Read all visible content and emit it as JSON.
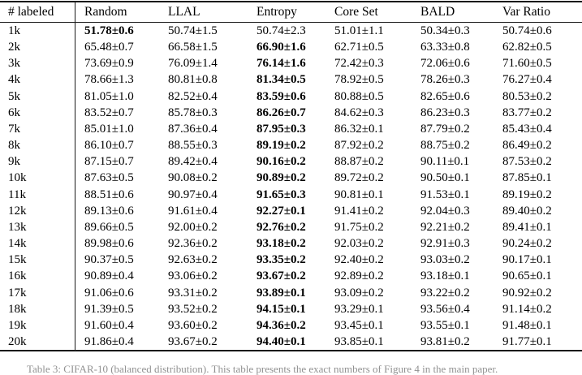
{
  "colors": {
    "rule": "#1a1a1a",
    "text": "#000000"
  },
  "table": {
    "col_headers": [
      "# labeled",
      "Random",
      "LLAL",
      "Entropy",
      "Core Set",
      "BALD",
      "Var Ratio"
    ],
    "rows": [
      {
        "label": "1k",
        "values": [
          "51.78±0.6",
          "50.74±1.5",
          "50.74±2.3",
          "51.01±1.1",
          "50.34±0.3",
          "50.74±0.6"
        ],
        "bold_col": 0
      },
      {
        "label": "2k",
        "values": [
          "65.48±0.7",
          "66.58±1.5",
          "66.90±1.6",
          "62.71±0.5",
          "63.33±0.8",
          "62.82±0.5"
        ],
        "bold_col": 2
      },
      {
        "label": "3k",
        "values": [
          "73.69±0.9",
          "76.09±1.4",
          "76.14±1.6",
          "72.42±0.3",
          "72.06±0.6",
          "71.60±0.5"
        ],
        "bold_col": 2
      },
      {
        "label": "4k",
        "values": [
          "78.66±1.3",
          "80.81±0.8",
          "81.34±0.5",
          "78.92±0.5",
          "78.26±0.3",
          "76.27±0.4"
        ],
        "bold_col": 2
      },
      {
        "label": "5k",
        "values": [
          "81.05±1.0",
          "82.52±0.4",
          "83.59±0.6",
          "80.88±0.5",
          "82.65±0.6",
          "80.53±0.2"
        ],
        "bold_col": 2
      },
      {
        "label": "6k",
        "values": [
          "83.52±0.7",
          "85.78±0.3",
          "86.26±0.7",
          "84.62±0.3",
          "86.23±0.3",
          "83.77±0.2"
        ],
        "bold_col": 2
      },
      {
        "label": "7k",
        "values": [
          "85.01±1.0",
          "87.36±0.4",
          "87.95±0.3",
          "86.32±0.1",
          "87.79±0.2",
          "85.43±0.4"
        ],
        "bold_col": 2
      },
      {
        "label": "8k",
        "values": [
          "86.10±0.7",
          "88.55±0.3",
          "89.19±0.2",
          "87.92±0.2",
          "88.75±0.2",
          "86.49±0.2"
        ],
        "bold_col": 2
      },
      {
        "label": "9k",
        "values": [
          "87.15±0.7",
          "89.42±0.4",
          "90.16±0.2",
          "88.87±0.2",
          "90.11±0.1",
          "87.53±0.2"
        ],
        "bold_col": 2
      },
      {
        "label": "10k",
        "values": [
          "87.63±0.5",
          "90.08±0.2",
          "90.89±0.2",
          "89.72±0.2",
          "90.50±0.1",
          "87.85±0.1"
        ],
        "bold_col": 2
      },
      {
        "label": "11k",
        "values": [
          "88.51±0.6",
          "90.97±0.4",
          "91.65±0.3",
          "90.81±0.1",
          "91.53±0.1",
          "89.19±0.2"
        ],
        "bold_col": 2
      },
      {
        "label": "12k",
        "values": [
          "89.13±0.6",
          "91.61±0.4",
          "92.27±0.1",
          "91.41±0.2",
          "92.04±0.3",
          "89.40±0.2"
        ],
        "bold_col": 2
      },
      {
        "label": "13k",
        "values": [
          "89.66±0.5",
          "92.00±0.2",
          "92.76±0.2",
          "91.75±0.2",
          "92.21±0.2",
          "89.41±0.1"
        ],
        "bold_col": 2
      },
      {
        "label": "14k",
        "values": [
          "89.98±0.6",
          "92.36±0.2",
          "93.18±0.2",
          "92.03±0.2",
          "92.91±0.3",
          "90.24±0.2"
        ],
        "bold_col": 2
      },
      {
        "label": "15k",
        "values": [
          "90.37±0.5",
          "92.63±0.2",
          "93.35±0.2",
          "92.40±0.2",
          "93.03±0.2",
          "90.17±0.1"
        ],
        "bold_col": 2
      },
      {
        "label": "16k",
        "values": [
          "90.89±0.4",
          "93.06±0.2",
          "93.67±0.2",
          "92.89±0.2",
          "93.18±0.1",
          "90.65±0.1"
        ],
        "bold_col": 2
      },
      {
        "label": "17k",
        "values": [
          "91.06±0.6",
          "93.31±0.2",
          "93.89±0.1",
          "93.09±0.2",
          "93.22±0.2",
          "90.92±0.2"
        ],
        "bold_col": 2
      },
      {
        "label": "18k",
        "values": [
          "91.39±0.5",
          "93.52±0.2",
          "94.15±0.1",
          "93.29±0.1",
          "93.56±0.4",
          "91.14±0.2"
        ],
        "bold_col": 2
      },
      {
        "label": "19k",
        "values": [
          "91.60±0.4",
          "93.60±0.2",
          "94.36±0.2",
          "93.45±0.1",
          "93.55±0.1",
          "91.48±0.1"
        ],
        "bold_col": 2
      },
      {
        "label": "20k",
        "values": [
          "91.86±0.4",
          "93.67±0.2",
          "94.40±0.1",
          "93.85±0.1",
          "93.81±0.2",
          "91.77±0.1"
        ],
        "bold_col": 2
      }
    ]
  },
  "caption": "Table 3: CIFAR-10 (balanced distribution). This table presents the exact numbers of Figure 4 in the main paper."
}
